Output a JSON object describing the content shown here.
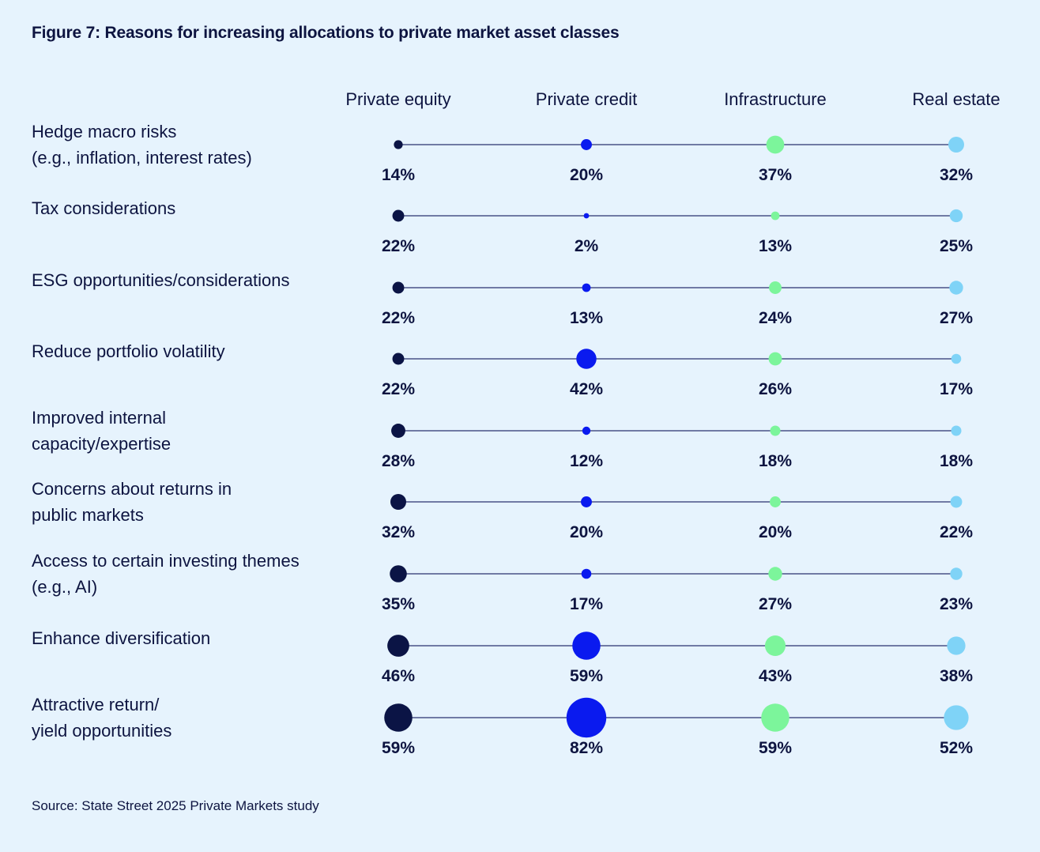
{
  "title": "Figure 7: Reasons for increasing allocations to private market asset classes",
  "source": "Source: State Street 2025 Private Markets study",
  "colors": {
    "background": "#e6f3fd",
    "text": "#0d1440",
    "line": "#2a3270",
    "series": [
      "#0b1445",
      "#0a1aef",
      "#7cf59b",
      "#7fd3f7"
    ]
  },
  "chart_data": {
    "type": "scatter",
    "columns": [
      "Private equity",
      "Private credit",
      "Infrastructure",
      "Real estate"
    ],
    "rows": [
      {
        "label_lines": [
          "Hedge macro risks",
          "(e.g., inflation, interest rates)"
        ],
        "values": [
          14,
          20,
          37,
          32
        ]
      },
      {
        "label_lines": [
          "Tax considerations"
        ],
        "values": [
          22,
          2,
          13,
          25
        ]
      },
      {
        "label_lines": [
          "ESG opportunities/considerations"
        ],
        "values": [
          22,
          13,
          24,
          27
        ]
      },
      {
        "label_lines": [
          "Reduce portfolio volatility"
        ],
        "values": [
          22,
          42,
          26,
          17
        ]
      },
      {
        "label_lines": [
          "Improved internal",
          "capacity/expertise"
        ],
        "values": [
          28,
          12,
          18,
          18
        ]
      },
      {
        "label_lines": [
          "Concerns about returns in",
          "public markets"
        ],
        "values": [
          32,
          20,
          20,
          22
        ]
      },
      {
        "label_lines": [
          "Access to certain investing themes",
          "(e.g., AI)"
        ],
        "values": [
          35,
          17,
          27,
          23
        ]
      },
      {
        "label_lines": [
          "Enhance diversification"
        ],
        "values": [
          46,
          59,
          43,
          38
        ]
      },
      {
        "label_lines": [
          "Attractive return/",
          "yield opportunities"
        ],
        "values": [
          59,
          82,
          59,
          52
        ]
      }
    ],
    "value_suffix": "%"
  }
}
